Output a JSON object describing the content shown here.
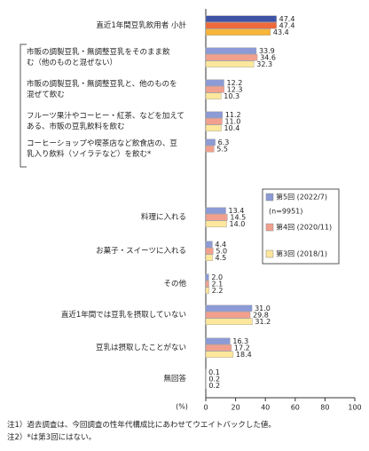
{
  "chart_data": {
    "type": "hbar",
    "categories": [
      "直近1年間豆乳飲用者 小計",
      "市販の調製豆乳・無調整豆乳をそのまま飲\nむ（他のものと混ぜない）",
      "市販の調製豆乳・無調整豆乳と、他のものを\n混ぜて飲む",
      "フルーツ果汁やコーヒー・紅茶、などを加えて\nある、市販の豆乳飲料を飲む",
      "コーヒーショップや喫茶店など飲食店の、豆\n乳入り飲料（ソイラテなど）を飲む*",
      "料理に入れる",
      "お菓子・スイーツに入れる",
      "その他",
      "直近1年間では豆乳を摂取していない",
      "豆乳は摂取したことがない",
      "無回答"
    ],
    "series": [
      {
        "name": "第5回 (2022/7)",
        "color": "#8c9ad6",
        "highlight_color": "#3f53a6",
        "values": [
          47.4,
          33.9,
          12.2,
          11.2,
          6.3,
          13.4,
          4.4,
          2.0,
          31.0,
          16.3,
          0.1
        ],
        "value_labels": [
          "47.4",
          "33.9",
          "12.2",
          "11.2",
          "6.3",
          "13.4",
          "4.4",
          "2.0",
          "31.0",
          "16.3",
          "0.1"
        ]
      },
      {
        "name": "第4回 (2020/11)",
        "color": "#f2a08e",
        "highlight_color": "#ee6a3c",
        "values": [
          47.4,
          34.6,
          12.3,
          11.0,
          5.5,
          14.5,
          5.0,
          2.1,
          29.8,
          17.2,
          0.2
        ],
        "value_labels": [
          "47.4",
          "34.6",
          "12.3",
          "11.0",
          "5.5",
          "14.5",
          "5.0",
          "2.1",
          "29.8",
          "17.2",
          "0.2"
        ]
      },
      {
        "name": "第3回 (2018/1)",
        "color": "#fde79c",
        "highlight_color": "#f7b53a",
        "values": [
          43.4,
          32.3,
          10.3,
          10.4,
          null,
          14.0,
          4.5,
          2.2,
          31.2,
          18.4,
          0.2
        ],
        "value_labels": [
          "43.4",
          "32.3",
          "10.3",
          "10.4",
          null,
          "14.0",
          "4.5",
          "2.2",
          "31.2",
          "18.4",
          "0.2"
        ]
      }
    ],
    "highlight_category": 0,
    "legend_note": "(n=9951)",
    "xlim": [
      0,
      100
    ],
    "xticks": [
      0,
      20,
      40,
      60,
      80,
      100
    ],
    "xlabel": "(%)",
    "notes": [
      "注1）過去調査は、今回調査の性年代構成比にあわせてウエイトバックした値。",
      "注2）*は第3回にはない。"
    ]
  }
}
